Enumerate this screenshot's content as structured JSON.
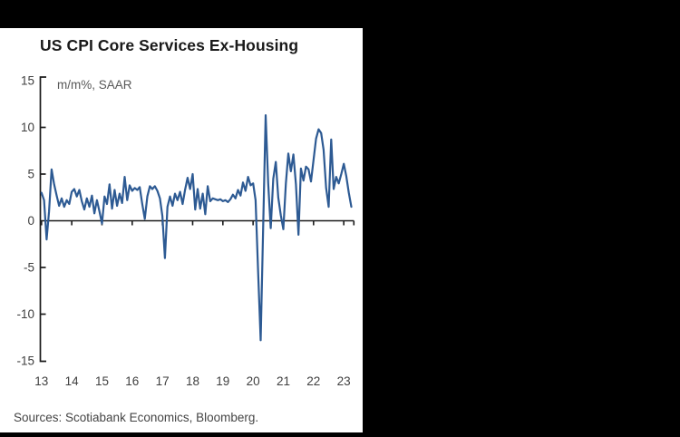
{
  "header": {
    "title": "US CPI Core Services Ex-Housing"
  },
  "chart_data": {
    "type": "line",
    "title": "US CPI Core Services Ex-Housing",
    "unit_label": "m/m%, SAAR",
    "series_name": "US CPI core services ex-housing (m/m %, SAAR)",
    "frequency": "monthly",
    "x_start": "2013-01",
    "x_end": "2023-04",
    "x_tick_labels": [
      "13",
      "14",
      "15",
      "16",
      "17",
      "18",
      "19",
      "20",
      "21",
      "22",
      "23"
    ],
    "y_ticks": [
      15,
      10,
      5,
      0,
      -5,
      -10,
      -15
    ],
    "ylim": [
      -15,
      15
    ],
    "grid": "off",
    "legend": "none",
    "line_color": "#2d5a93",
    "axis_color": "#1a1a1a",
    "tick_label_color": "#3f3f3f",
    "values": [
      3.0,
      2.2,
      -2.0,
      1.0,
      5.5,
      3.9,
      2.7,
      1.6,
      2.4,
      1.5,
      2.2,
      1.8,
      3.1,
      3.4,
      2.6,
      3.3,
      2.1,
      1.2,
      2.4,
      1.5,
      2.7,
      0.8,
      2.2,
      1.0,
      -0.3,
      2.6,
      1.8,
      3.9,
      1.3,
      3.3,
      1.6,
      2.9,
      1.9,
      4.7,
      2.2,
      3.8,
      3.2,
      3.5,
      3.3,
      3.6,
      1.8,
      0.2,
      2.6,
      3.7,
      3.4,
      3.7,
      3.2,
      2.4,
      0.5,
      -4.0,
      1.5,
      2.6,
      1.6,
      2.9,
      2.2,
      3.1,
      1.8,
      3.3,
      4.6,
      3.4,
      5.0,
      1.2,
      3.4,
      1.3,
      2.9,
      0.7,
      3.7,
      2.1,
      2.4,
      2.3,
      2.2,
      2.3,
      2.1,
      2.2,
      2.0,
      2.3,
      2.8,
      2.4,
      3.3,
      2.7,
      4.1,
      3.2,
      4.7,
      3.8,
      4.0,
      2.2,
      -5.5,
      -12.8,
      -0.5,
      11.3,
      4.0,
      -0.8,
      4.5,
      6.3,
      2.5,
      0.6,
      -0.9,
      4.0,
      7.2,
      5.3,
      7.1,
      3.9,
      -1.5,
      5.6,
      4.3,
      5.8,
      5.5,
      4.2,
      6.5,
      8.8,
      9.8,
      9.4,
      7.6,
      3.5,
      1.5,
      8.7,
      3.4,
      4.7,
      4.0,
      5.0,
      6.1,
      4.8,
      3.0,
      1.5
    ]
  },
  "footer": {
    "sources": "Sources: Scotiabank Economics, Bloomberg."
  }
}
